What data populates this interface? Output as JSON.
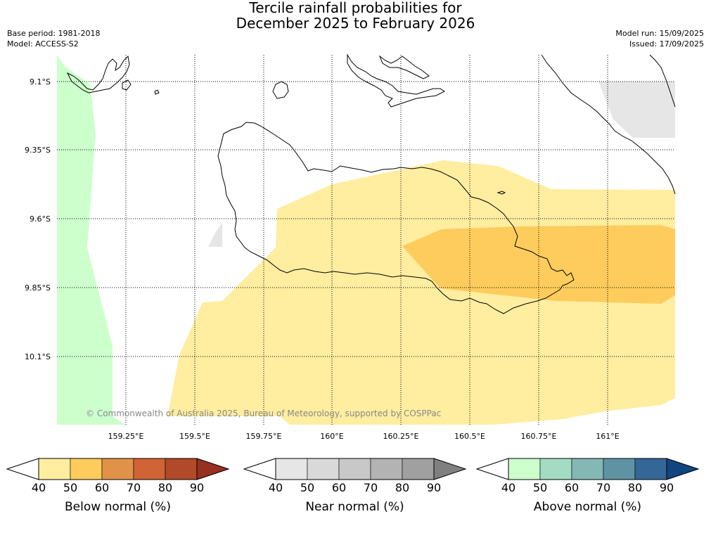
{
  "title_line1": "Tercile rainfall probabilities for",
  "title_line2": "December 2025 to February 2026",
  "base_period": "Base period: 1981-2018",
  "model": "Model: ACCESS-S2",
  "model_run": "Model run: 15/09/2025",
  "issued": "Issued: 17/09/2025",
  "copyright": "© Commonwealth of Australia 2025, Bureau of Meteorology, supported by COSPPac",
  "lat_labels": [
    "9.1°S",
    "9.35°S",
    "9.6°S",
    "9.85°S",
    "10.1°S"
  ],
  "lon_labels": [
    "159.25°E",
    "159.5°E",
    "159.75°E",
    "160°E",
    "160.25°E",
    "160.5°E",
    "160.75°E",
    "161°E"
  ],
  "colorbars": [
    {
      "title": "Below normal (%)",
      "ticks": [
        "40",
        "50",
        "60",
        "70",
        "80",
        "90"
      ],
      "colors": [
        "#ffeda0",
        "#fecc5c",
        "#e09248",
        "#d06434",
        "#b04a28",
        "#983020"
      ]
    },
    {
      "title": "Near normal (%)",
      "ticks": [
        "40",
        "50",
        "60",
        "70",
        "80",
        "90"
      ],
      "colors": [
        "#e6e6e6",
        "#d9d9d9",
        "#c8c8c8",
        "#b3b3b3",
        "#a0a0a0",
        "#808080"
      ]
    },
    {
      "title": "Above normal (%)",
      "ticks": [
        "40",
        "50",
        "60",
        "70",
        "80",
        "90"
      ],
      "colors": [
        "#ccffcc",
        "#a3dcc2",
        "#84b8b5",
        "#5e93a3",
        "#346797",
        "#124580"
      ]
    }
  ],
  "colors": {
    "below_40_50": "#ffeda0",
    "below_50_60": "#fecc5c",
    "near_40_50": "#e6e6e6",
    "above_40_50": "#ccffcc"
  }
}
